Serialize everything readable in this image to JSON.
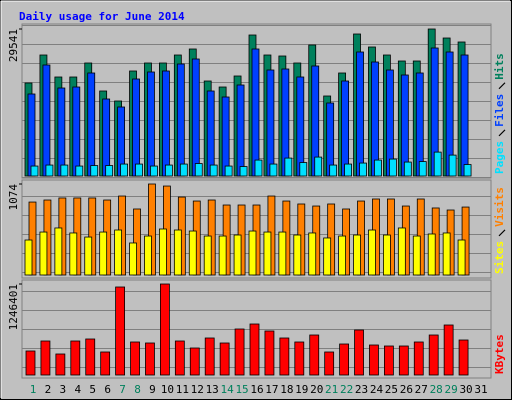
{
  "chart_data": [
    {
      "type": "bar",
      "title": "Daily usage for June 2014",
      "categories": [
        "1",
        "2",
        "3",
        "4",
        "5",
        "6",
        "7",
        "8",
        "9",
        "10",
        "11",
        "12",
        "13",
        "14",
        "15",
        "16",
        "17",
        "18",
        "19",
        "20",
        "21",
        "22",
        "23",
        "24",
        "25",
        "26",
        "27",
        "28",
        "29",
        "30",
        "31"
      ],
      "category_colors": [
        "#00805c",
        "#000000",
        "#000000",
        "#000000",
        "#000000",
        "#000000",
        "#00805c",
        "#00805c",
        "#000000",
        "#000000",
        "#000000",
        "#000000",
        "#000000",
        "#00805c",
        "#00805c",
        "#000000",
        "#000000",
        "#000000",
        "#000000",
        "#000000",
        "#00805c",
        "#00805c",
        "#000000",
        "#000000",
        "#000000",
        "#000000",
        "#000000",
        "#00805c",
        "#00805c",
        "#000000",
        "#000000"
      ],
      "ylim": [
        0,
        29541
      ],
      "yticks": [
        29541
      ],
      "series": [
        {
          "name": "Pages",
          "color": "#00e0ff",
          "values": [
            2000,
            2200,
            2200,
            2000,
            2100,
            2100,
            2400,
            2400,
            2000,
            2200,
            2400,
            2500,
            2200,
            2000,
            1900,
            3200,
            2400,
            3600,
            2700,
            3800,
            2200,
            2400,
            2600,
            3200,
            3400,
            2800,
            2900,
            4800,
            4200,
            2300,
            null
          ]
        },
        {
          "name": "Files",
          "color": "#0040ff",
          "values": [
            16479,
            22307,
            17684,
            17885,
            20699,
            15474,
            13866,
            19493,
            20900,
            21101,
            22508,
            23512,
            17082,
            15876,
            18287,
            25522,
            21302,
            21503,
            19895,
            22106,
            14670,
            19091,
            24919,
            22909,
            21302,
            20297,
            20699,
            25723,
            24919,
            24316,
            null
          ]
        },
        {
          "name": "Hits",
          "color": "#00805c",
          "values": [
            18689,
            24316,
            19895,
            19895,
            22708,
            17082,
            15072,
            21101,
            22708,
            22708,
            24316,
            25522,
            19091,
            17885,
            20096,
            28335,
            24316,
            24115,
            22708,
            26326,
            16077,
            20699,
            28536,
            25924,
            24316,
            23110,
            23110,
            29541,
            27732,
            26929,
            null
          ]
        }
      ]
    },
    {
      "type": "bar",
      "ylim": [
        0,
        1074
      ],
      "yticks": [
        1074
      ],
      "series": [
        {
          "name": "Sites",
          "color": "#ffff00",
          "values": [
            413,
            507,
            555,
            496,
            448,
            507,
            531,
            378,
            460,
            543,
            531,
            519,
            460,
            460,
            472,
            519,
            507,
            507,
            472,
            496,
            437,
            460,
            472,
            531,
            472,
            555,
            460,
            484,
            496,
            413,
            null
          ]
        },
        {
          "name": "Visits",
          "color": "#ff8000",
          "values": [
            861,
            885,
            909,
            909,
            909,
            885,
            932,
            779,
            1074,
            1050,
            920,
            873,
            885,
            826,
            826,
            826,
            932,
            873,
            838,
            814,
            838,
            779,
            873,
            897,
            897,
            814,
            897,
            791,
            767,
            802,
            null
          ]
        }
      ]
    },
    {
      "type": "bar",
      "ylim": [
        0,
        1246401
      ],
      "yticks": [
        1246401
      ],
      "series": [
        {
          "name": "KBytes",
          "color": "#ff0000",
          "values": [
            328728,
            465698,
            287637,
            465698,
            493092,
            315031,
            1205326,
            451997,
            438304,
            1246401,
            465698,
            369816,
            506788,
            438304,
            630050,
            698534,
            602665,
            506788,
            451997,
            547868,
            315031,
            424595,
            616358,
            410901,
            397205,
            397205,
            451997,
            547868,
            684836,
            479384,
            null
          ]
        }
      ]
    }
  ]
}
